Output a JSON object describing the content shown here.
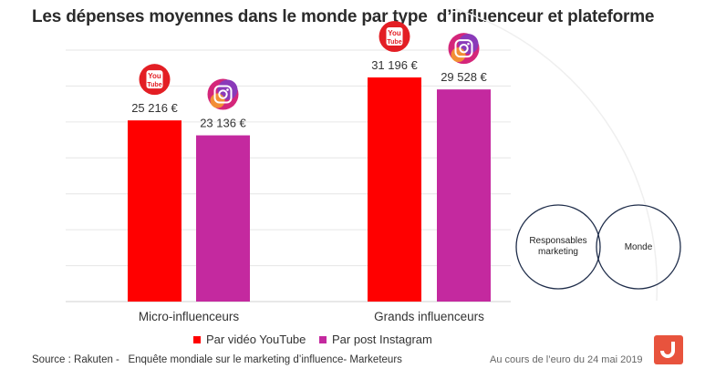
{
  "title": "Les dépenses moyennes dans le monde par type  d’influenceur et plateforme",
  "chart_data": {
    "type": "bar",
    "title": "Les dépenses moyennes dans le monde par type  d’influenceur et plateforme",
    "categories": [
      "Micro-influenceurs",
      "Grands influenceurs"
    ],
    "series": [
      {
        "name": "Par vidéo YouTube",
        "values": [
          25216,
          31196
        ],
        "labels": [
          "25 216 €",
          "31 196 €"
        ],
        "color": "#ff0000",
        "icon": "youtube-icon"
      },
      {
        "name": "Par post Instagram",
        "values": [
          23136,
          29528
        ],
        "labels": [
          "23 136 €",
          "29 528 €"
        ],
        "color": "#c4299f",
        "icon": "instagram-icon"
      }
    ],
    "ylim": [
      0,
      35000
    ],
    "grid": true,
    "legend": "bottom"
  },
  "youtube_logo_text": [
    "You",
    "Tube"
  ],
  "venn": {
    "left": "Responsables\nmarketing",
    "right": "Monde"
  },
  "footer": {
    "source": "Source : Rakuten -   Enquête mondiale sur le marketing d’influence- Marketeurs",
    "note": "Au cours de l’euro du 24 mai 2019"
  },
  "brand_color": "#e8533d"
}
